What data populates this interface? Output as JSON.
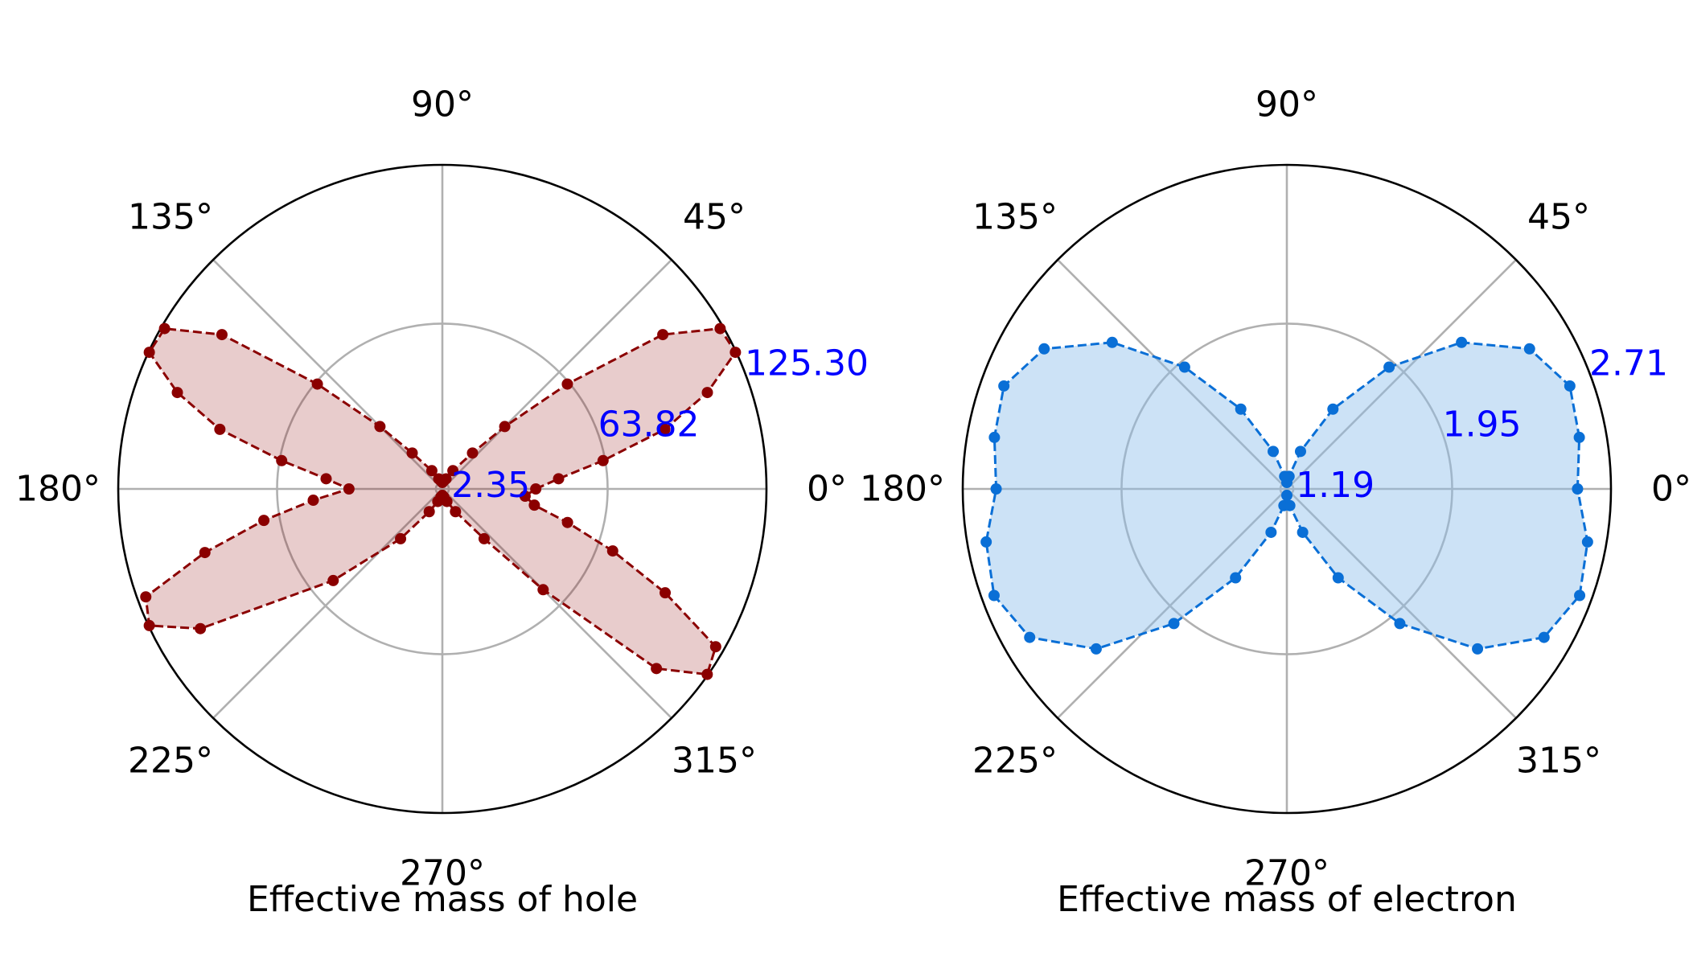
{
  "chart_data": [
    {
      "type": "polar",
      "xlabel": "Effective mass of hole",
      "theta_tick_labels": [
        "0°",
        "45°",
        "90°",
        "135°",
        "180°",
        "225°",
        "270°",
        "315°"
      ],
      "r_tick_labels": [
        "2.35",
        "63.82",
        "125.30"
      ],
      "rlim": [
        2.35,
        125.3
      ],
      "grid": true,
      "colors": {
        "line": "#8b0000",
        "fill": "#8b0000",
        "fill_opacity": 0.2,
        "tick_label": "#0000ff"
      },
      "series": [
        {
          "style": "dashed line with markers, filled",
          "theta_deg": [
            0,
            5,
            10,
            15,
            20,
            25,
            30,
            35,
            40,
            45,
            50,
            60,
            70,
            80,
            90,
            100,
            110,
            120,
            130,
            135,
            140,
            145,
            150,
            155,
            160,
            165,
            170,
            175,
            180,
            185,
            190,
            195,
            200,
            205,
            210,
            220,
            230,
            240,
            250,
            260,
            270,
            280,
            290,
            300,
            310,
            315,
            320,
            325,
            330,
            335,
            340,
            345,
            350,
            355
          ],
          "r": [
            36,
            45,
            63,
            89,
            109,
            125,
            124,
            104,
            63,
            34,
            18,
            8,
            4,
            3,
            2.35,
            3,
            4,
            8,
            18,
            34,
            63,
            104,
            124,
            125,
            109,
            89,
            63,
            45,
            36,
            50,
            70,
            95,
            122,
            125,
            108,
            55,
            25,
            10,
            5,
            3,
            2.35,
            3,
            5,
            10,
            25,
            55,
            108,
            125,
            122,
            95,
            70,
            50,
            36,
            32
          ]
        }
      ]
    },
    {
      "type": "polar",
      "xlabel": "Effective mass of electron",
      "theta_tick_labels": [
        "0°",
        "45°",
        "90°",
        "135°",
        "180°",
        "225°",
        "270°",
        "315°"
      ],
      "r_tick_labels": [
        "1.19",
        "1.95",
        "2.71"
      ],
      "rlim": [
        1.19,
        2.71
      ],
      "grid": true,
      "colors": {
        "line": "#0a6fd6",
        "fill": "#8fbfea",
        "fill_opacity": 0.45,
        "tick_label": "#0000ff"
      },
      "series": [
        {
          "style": "dashed line with markers, filled",
          "theta_deg": [
            0,
            10,
            20,
            30,
            40,
            50,
            60,
            70,
            80,
            90,
            100,
            110,
            120,
            130,
            140,
            150,
            160,
            170,
            180,
            190,
            200,
            210,
            220,
            230,
            240,
            250,
            260,
            270,
            280,
            290,
            300,
            310,
            320,
            330,
            340,
            350
          ],
          "r": [
            2.55,
            2.58,
            2.6,
            2.5,
            2.25,
            1.92,
            1.6,
            1.35,
            1.22,
            1.19,
            1.22,
            1.35,
            1.6,
            1.92,
            2.25,
            2.5,
            2.6,
            2.58,
            2.55,
            2.62,
            2.65,
            2.58,
            2.35,
            2.0,
            1.65,
            1.38,
            1.24,
            1.19,
            1.24,
            1.38,
            1.65,
            2.0,
            2.35,
            2.58,
            2.65,
            2.62
          ]
        }
      ]
    }
  ]
}
